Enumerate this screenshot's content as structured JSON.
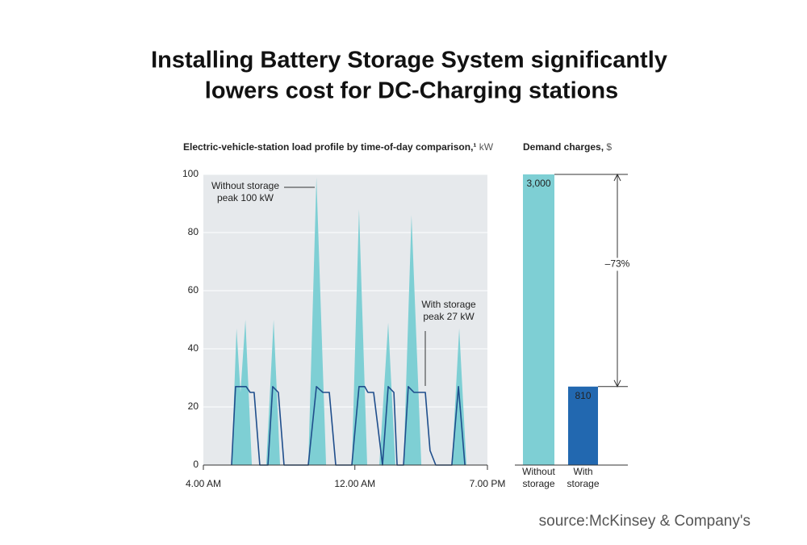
{
  "title": [
    "Installing Battery Storage System significantly",
    "lowers cost for DC-Charging stations"
  ],
  "source": "source:McKinsey & Company's",
  "chart_data": [
    {
      "type": "area_line",
      "title": "Electric-vehicle-station load profile by time-of-day comparison,¹",
      "unit": "kW",
      "xlim": [
        4,
        19
      ],
      "xticks": [
        {
          "value": 4,
          "label": "4.00 AM"
        },
        {
          "value": 12,
          "label": "12.00 AM"
        },
        {
          "value": 19,
          "label": "7.00 PM"
        }
      ],
      "ylim": [
        0,
        100
      ],
      "yticks": [
        0,
        20,
        40,
        60,
        80,
        100
      ],
      "grid": true,
      "series": [
        {
          "name": "Without storage",
          "kind": "area",
          "color": "#7ecfd4",
          "x": [
            5.49,
            5.75,
            5.96,
            6.22,
            6.56,
            7.32,
            7.71,
            8.05,
            9.54,
            9.97,
            10.48,
            11.84,
            12.22,
            12.65,
            13.29,
            13.76,
            14.14,
            14.57,
            14.99,
            15.51,
            17.12,
            17.51,
            17.89
          ],
          "values": [
            0,
            47,
            25,
            50,
            0,
            0,
            50,
            0,
            0,
            99,
            0,
            0,
            88,
            0,
            0,
            49,
            0,
            0,
            86,
            0,
            0,
            47,
            0
          ]
        },
        {
          "name": "With storage",
          "kind": "line",
          "color": "#1f4e8c",
          "x": [
            5.49,
            5.7,
            6.26,
            6.47,
            6.68,
            6.98,
            7.41,
            7.66,
            7.96,
            8.26,
            9.54,
            9.97,
            10.31,
            10.65,
            10.99,
            11.84,
            12.22,
            12.52,
            12.69,
            12.99,
            13.2,
            13.46,
            13.76,
            14.06,
            14.23,
            14.57,
            14.82,
            15.12,
            15.72,
            15.97,
            16.27,
            17.12,
            17.47,
            17.81
          ],
          "values": [
            0,
            27,
            27,
            25,
            25,
            0,
            0,
            27,
            25,
            0,
            0,
            27,
            25,
            25,
            0,
            0,
            27,
            27,
            25,
            25,
            14,
            0,
            27,
            25,
            0,
            0,
            27,
            25,
            25,
            5,
            0,
            0,
            27,
            0
          ]
        }
      ],
      "annotations": [
        [
          "Without storage",
          "peak 100 kW"
        ],
        [
          "With storage",
          "peak 27 kW"
        ]
      ]
    },
    {
      "type": "bar",
      "title": "Demand charges,",
      "unit": "$",
      "categories": [
        [
          "Without",
          "storage"
        ],
        [
          "With",
          "storage"
        ]
      ],
      "values": [
        3000,
        810
      ],
      "value_labels": [
        "3,000",
        "810"
      ],
      "colors": [
        "#7ecfd4",
        "#2268b0"
      ],
      "ylim": [
        0,
        3000
      ],
      "annotation": "–73%"
    }
  ]
}
